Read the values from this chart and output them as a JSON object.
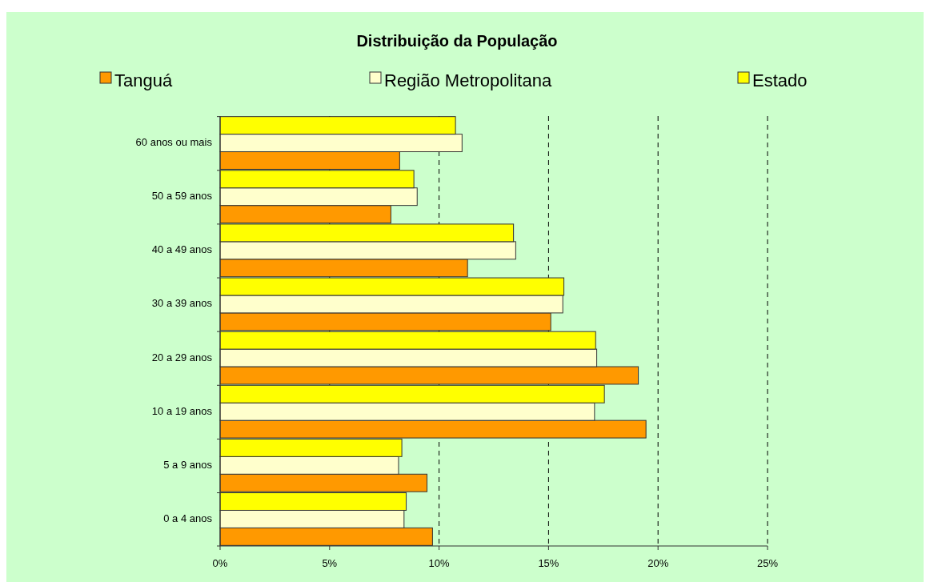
{
  "chart_data": {
    "type": "bar",
    "orientation": "horizontal",
    "title": "Distribuição da População",
    "categories": [
      "60 anos ou mais",
      "50 a 59 anos",
      "40 a 49 anos",
      "30 a 39 anos",
      "20 a 29 anos",
      "10 a 19 anos",
      "5 a 9 anos",
      "0 a 4 anos"
    ],
    "series": [
      {
        "name": "Tanguá",
        "color": "#ff9900",
        "values": [
          8.2,
          7.8,
          11.3,
          15.1,
          19.1,
          19.45,
          9.45,
          9.7
        ]
      },
      {
        "name": "Região Metropolitana",
        "color": "#ffffcc",
        "values": [
          11.05,
          9.0,
          13.5,
          15.65,
          17.2,
          17.1,
          8.15,
          8.4
        ]
      },
      {
        "name": "Estado",
        "color": "#ffff00",
        "values": [
          10.75,
          8.85,
          13.4,
          15.7,
          17.15,
          17.55,
          8.3,
          8.5
        ]
      }
    ],
    "xlim": [
      0,
      25
    ],
    "xticks": [
      {
        "value": 0,
        "label": "0%"
      },
      {
        "value": 5,
        "label": "5%"
      },
      {
        "value": 10,
        "label": "10%"
      },
      {
        "value": 15,
        "label": "15%"
      },
      {
        "value": 20,
        "label": "20%"
      },
      {
        "value": 25,
        "label": "25%"
      }
    ],
    "grid": "x",
    "legend": "top"
  }
}
